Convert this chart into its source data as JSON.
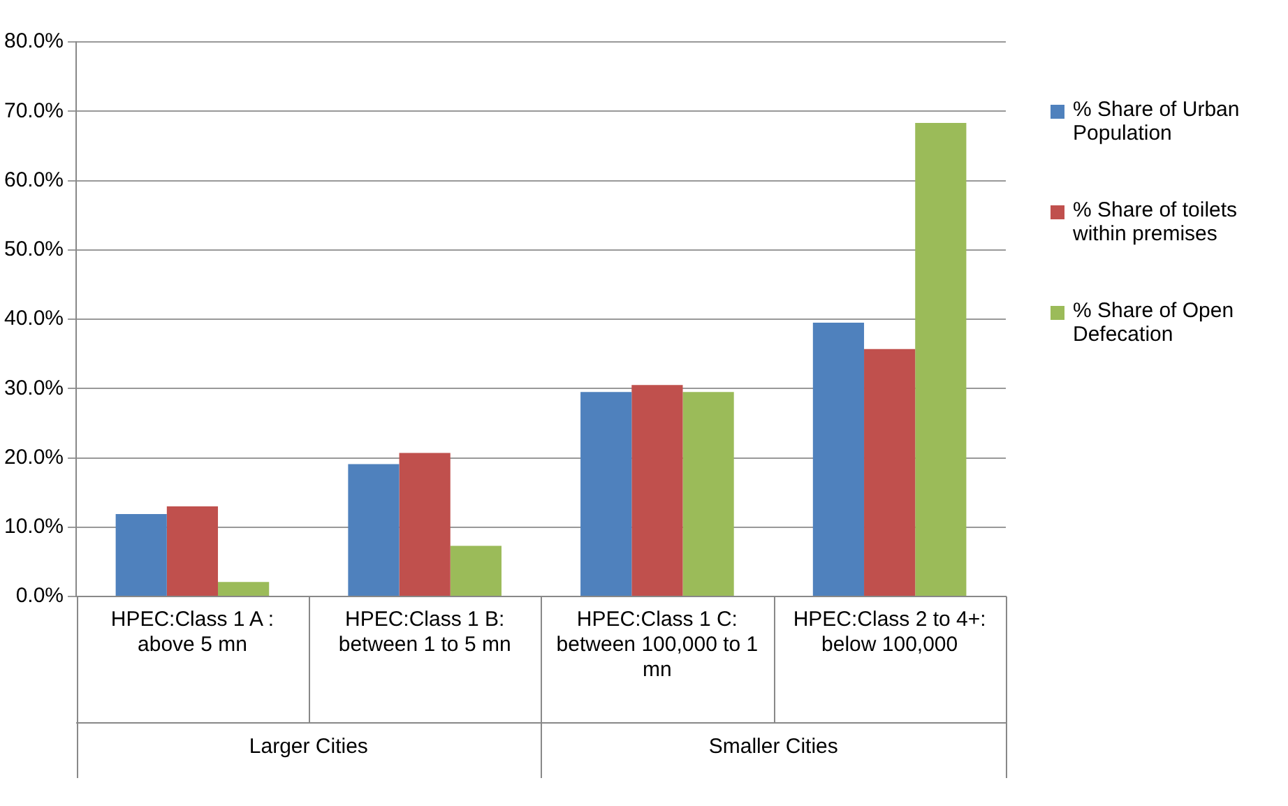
{
  "chart_data": {
    "type": "bar",
    "categories": [
      "HPEC:Class 1 A : above 5 mn",
      "HPEC:Class 1 B: between 1 to 5 mn",
      "HPEC:Class 1 C: between 100,000 to 1 mn",
      "HPEC:Class 2 to 4+: below 100,000"
    ],
    "series": [
      {
        "name": "% Share of Urban Population",
        "color": "#4f81bd",
        "values": [
          11.9,
          19.1,
          29.5,
          39.5
        ]
      },
      {
        "name": "% Share of toilets within premises",
        "color": "#c0504d",
        "values": [
          13.0,
          20.7,
          30.5,
          35.7
        ]
      },
      {
        "name": "% Share of Open Defecation",
        "color": "#9bbb59",
        "values": [
          2.1,
          7.3,
          29.5,
          68.3
        ]
      }
    ],
    "ylim": [
      0,
      80
    ],
    "yticks": [
      {
        "value": 0,
        "label": "0.0%"
      },
      {
        "value": 10,
        "label": "10.0%"
      },
      {
        "value": 20,
        "label": "20.0%"
      },
      {
        "value": 30,
        "label": "30.0%"
      },
      {
        "value": 40,
        "label": "40.0%"
      },
      {
        "value": 50,
        "label": "50.0%"
      },
      {
        "value": 60,
        "label": "60.0%"
      },
      {
        "value": 70,
        "label": "70.0%"
      },
      {
        "value": 80,
        "label": "80.0%"
      }
    ],
    "grid": "y",
    "legend": "right",
    "annotations": [
      "Larger Cities",
      "Smaller Cities"
    ]
  }
}
